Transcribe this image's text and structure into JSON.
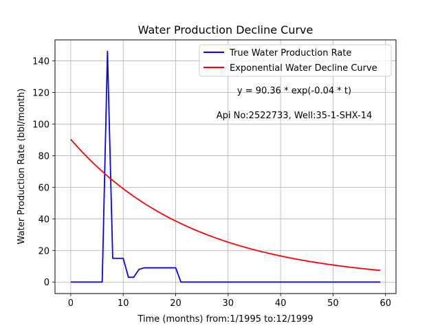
{
  "chart_data": {
    "type": "line",
    "title": "Water Production Decline Curve",
    "xlabel": "Time (months) from:1/1995 to:12/1999",
    "ylabel": "Water Production Rate (bbl/month)",
    "xlim": [
      -3,
      62
    ],
    "ylim": [
      -7.3,
      153.3
    ],
    "x_ticks": [
      0,
      10,
      20,
      30,
      40,
      50,
      60
    ],
    "y_ticks": [
      0,
      20,
      40,
      60,
      80,
      100,
      120,
      140
    ],
    "grid": true,
    "legend_position": "top-right",
    "series": [
      {
        "name": "True Water Production Rate",
        "color": "#0000ff",
        "x": [
          0,
          1,
          2,
          3,
          4,
          5,
          6,
          7,
          8,
          9,
          10,
          11,
          12,
          13,
          14,
          15,
          16,
          17,
          18,
          19,
          20,
          21,
          22,
          23,
          24,
          25,
          26,
          27,
          28,
          29,
          30,
          31,
          32,
          33,
          34,
          35,
          36,
          37,
          38,
          39,
          40,
          41,
          42,
          43,
          44,
          45,
          46,
          47,
          48,
          49,
          50,
          51,
          52,
          53,
          54,
          55,
          56,
          57,
          58,
          59
        ],
        "y": [
          0,
          0,
          0,
          0,
          0,
          0,
          0,
          146,
          15,
          15,
          15,
          3,
          3,
          8,
          9,
          9,
          9,
          9,
          9,
          9,
          9,
          0,
          0,
          0,
          0,
          0,
          0,
          0,
          0,
          0,
          0,
          0,
          0,
          0,
          0,
          0,
          0,
          0,
          0,
          0,
          0,
          0,
          0,
          0,
          0,
          0,
          0,
          0,
          0,
          0,
          0,
          0,
          0,
          0,
          0,
          0,
          0,
          0,
          0,
          0
        ]
      },
      {
        "name": "Exponential Water Decline Curve",
        "color": "#ff0000",
        "a": 90.36,
        "b": 0.0425,
        "x_range": [
          0,
          59
        ]
      }
    ],
    "annotations": [
      "y = 90.36 * exp(-0.04 * t)",
      "Api No:2522733, Well:35-1-SHX-14"
    ]
  }
}
